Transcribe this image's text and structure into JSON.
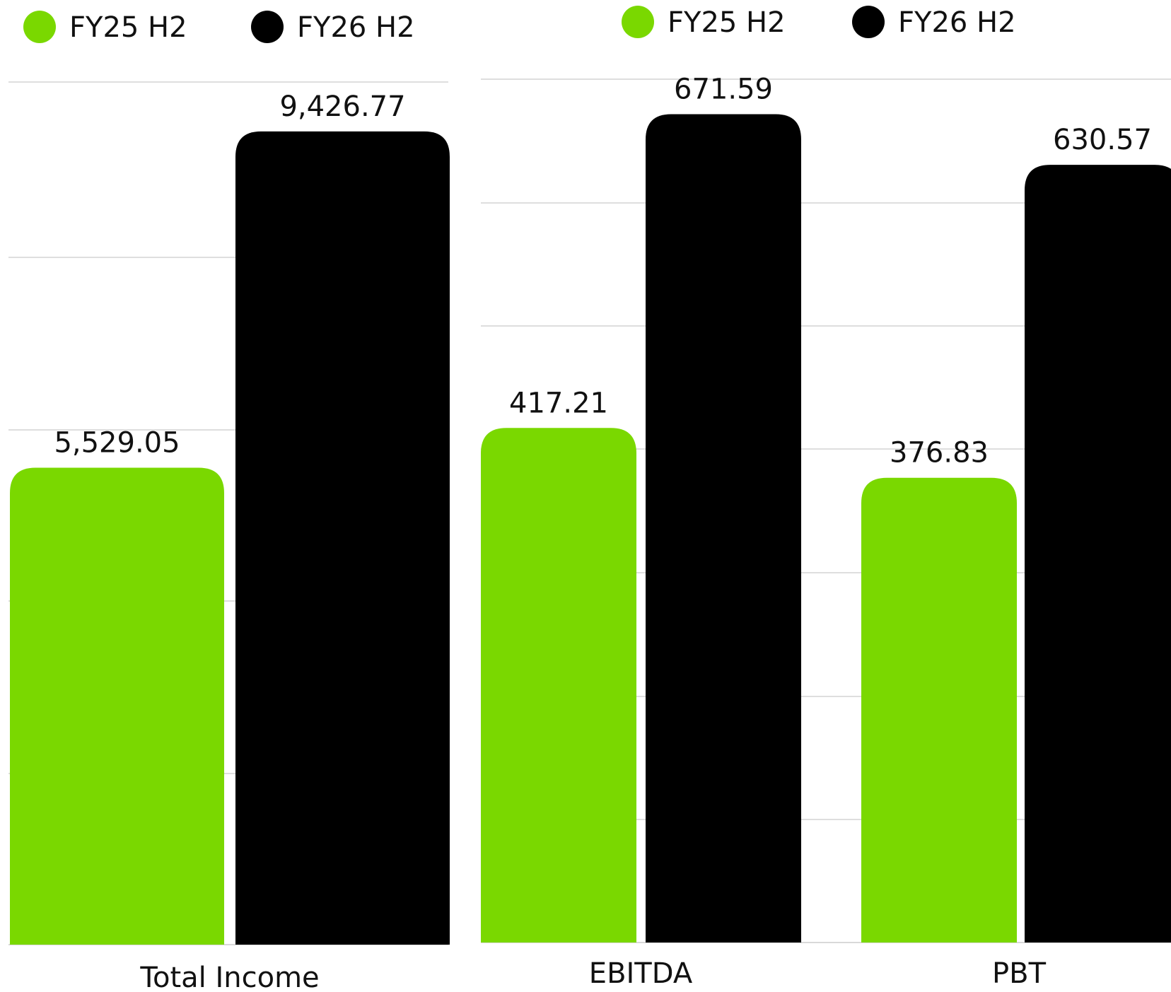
{
  "colors": {
    "fy25": "#7ad800",
    "fy26": "#000000",
    "grid": "#dedede"
  },
  "legend_icon": "circle-dot",
  "chart_data": [
    {
      "type": "bar",
      "categories": [
        "Total Income"
      ],
      "series": [
        {
          "name": "FY25 H2",
          "values": [
            5529.05
          ],
          "labels": [
            "5,529.05"
          ],
          "color": "#7ad800"
        },
        {
          "name": "FY26 H2",
          "values": [
            9426.77
          ],
          "labels": [
            "9,426.77"
          ],
          "color": "#000000"
        }
      ],
      "ylim": [
        0,
        10000
      ],
      "grid": true,
      "legend": "top-left"
    },
    {
      "type": "bar",
      "categories": [
        "EBITDA",
        "PBT"
      ],
      "series": [
        {
          "name": "FY25 H2",
          "values": [
            417.21,
            376.83
          ],
          "labels": [
            "417.21",
            "376.83"
          ],
          "color": "#7ad800"
        },
        {
          "name": "FY26 H2",
          "values": [
            671.59,
            630.57
          ],
          "labels": [
            "671.59",
            "630.57"
          ],
          "color": "#000000"
        }
      ],
      "ylim": [
        0,
        700
      ],
      "grid": true,
      "legend": "top-center"
    }
  ]
}
